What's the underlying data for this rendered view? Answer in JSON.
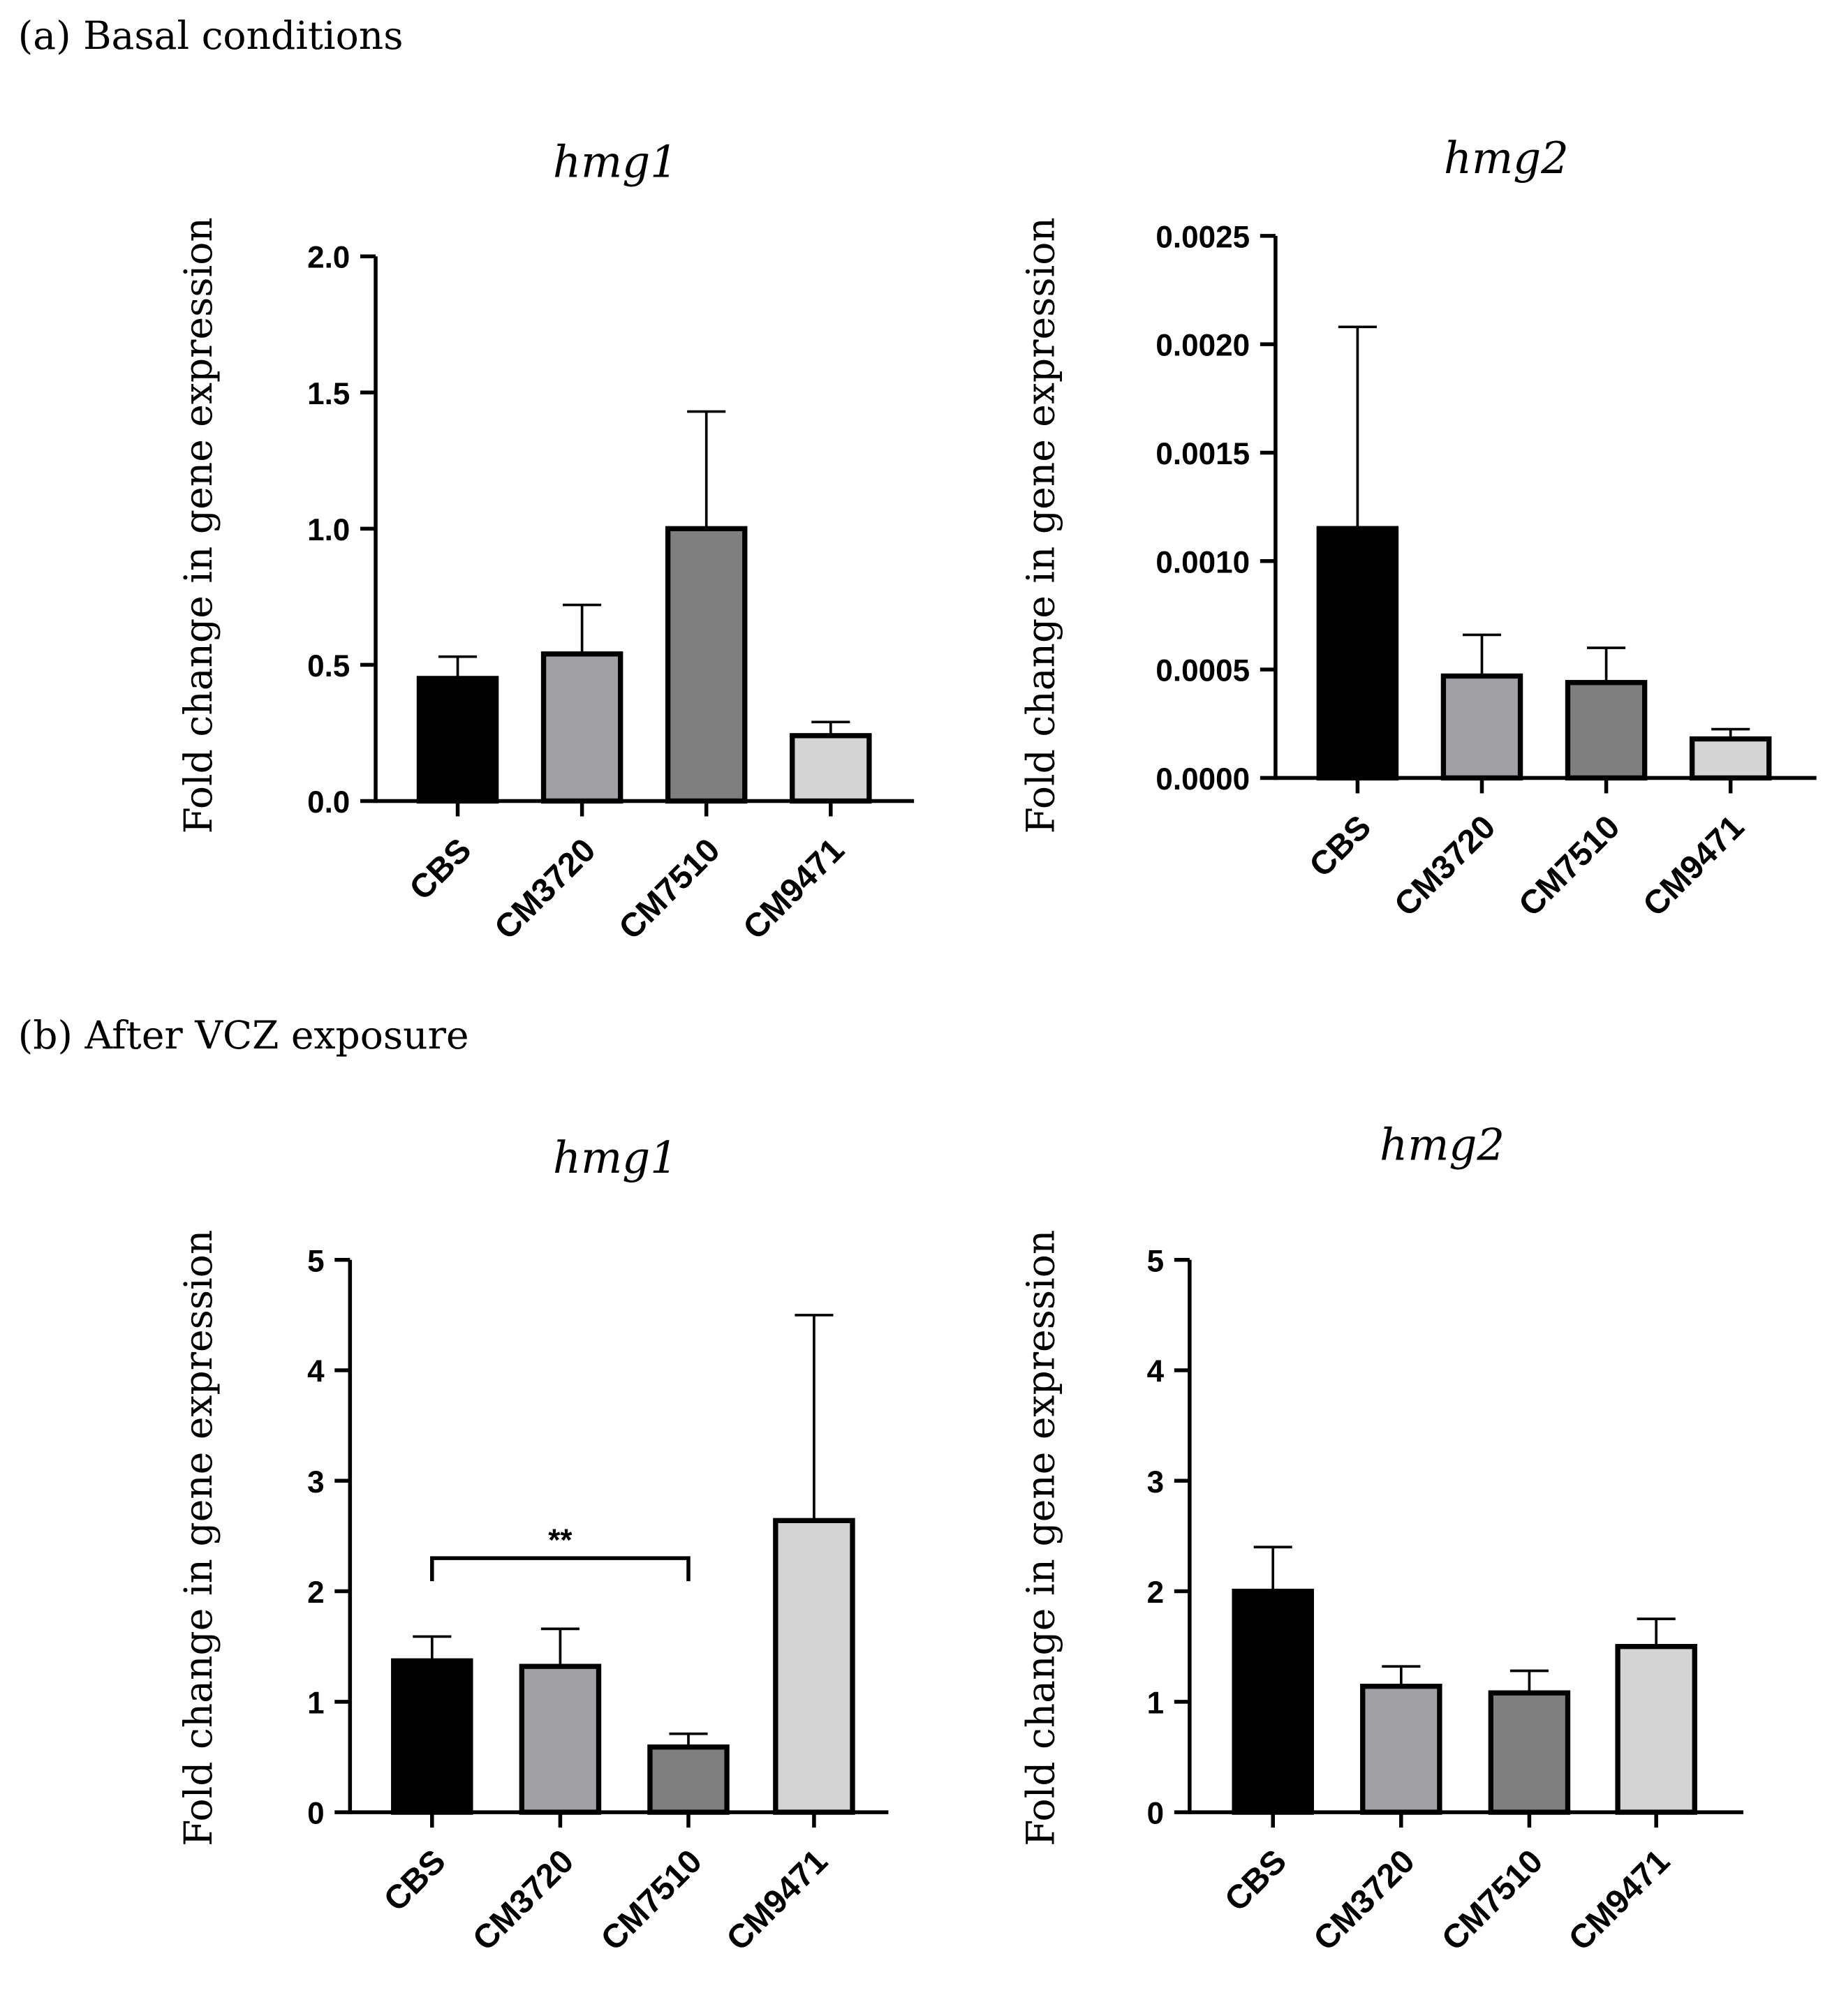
{
  "panels": [
    {
      "label": "(a) Basal conditions"
    },
    {
      "label": "(b) After VCZ exposure"
    }
  ],
  "colors": {
    "CBS": "#000000",
    "CM3720": "#a0a0a5",
    "CM7510": "#7f7f7f",
    "CM9471": "#d4d4d4"
  },
  "chart_data": [
    {
      "type": "bar",
      "panel": "a",
      "title": "hmg1",
      "ylabel": "Fold change in gene expression",
      "xlabel": "",
      "categories": [
        "CBS",
        "CM3720",
        "CM7510",
        "CM9471"
      ],
      "values": [
        0.45,
        0.54,
        1.0,
        0.24
      ],
      "error_upper": [
        0.53,
        0.72,
        1.43,
        0.29
      ],
      "ylim": [
        0,
        2.0
      ],
      "yticks": [
        "0.0",
        "0.5",
        "1.0",
        "1.5",
        "2.0"
      ],
      "ytick_values": [
        0,
        0.5,
        1.0,
        1.5,
        2.0
      ],
      "grid": false
    },
    {
      "type": "bar",
      "panel": "a",
      "title": "hmg2",
      "ylabel": "Fold change in gene expression",
      "xlabel": "",
      "categories": [
        "CBS",
        "CM3720",
        "CM7510",
        "CM9471"
      ],
      "values": [
        0.00115,
        0.00047,
        0.00044,
        0.00018
      ],
      "error_upper": [
        0.00208,
        0.00066,
        0.0006,
        0.000225
      ],
      "ylim": [
        0,
        0.0025
      ],
      "yticks": [
        "0.0000",
        "0.0005",
        "0.0010",
        "0.0015",
        "0.0020",
        "0.0025"
      ],
      "ytick_values": [
        0,
        0.0005,
        0.001,
        0.0015,
        0.002,
        0.0025
      ],
      "grid": false
    },
    {
      "type": "bar",
      "panel": "b",
      "title": "hmg1",
      "ylabel": "Fold change in gene expression",
      "xlabel": "",
      "categories": [
        "CBS",
        "CM3720",
        "CM7510",
        "CM9471"
      ],
      "values": [
        1.37,
        1.32,
        0.59,
        2.64
      ],
      "error_upper": [
        1.59,
        1.66,
        0.71,
        4.5
      ],
      "ylim": [
        0,
        5
      ],
      "yticks": [
        "0",
        "1",
        "2",
        "3",
        "4",
        "5"
      ],
      "ytick_values": [
        0,
        1,
        2,
        3,
        4,
        5
      ],
      "grid": false,
      "annotations": [
        {
          "type": "significance",
          "from": "CBS",
          "to": "CM7510",
          "text": "**",
          "y": 2.3
        }
      ]
    },
    {
      "type": "bar",
      "panel": "b",
      "title": "hmg2",
      "ylabel": "Fold change in gene expression",
      "xlabel": "",
      "categories": [
        "CBS",
        "CM3720",
        "CM7510",
        "CM9471"
      ],
      "values": [
        2.0,
        1.14,
        1.08,
        1.5
      ],
      "error_upper": [
        2.4,
        1.32,
        1.28,
        1.75
      ],
      "ylim": [
        0,
        5
      ],
      "yticks": [
        "0",
        "1",
        "2",
        "3",
        "4",
        "5"
      ],
      "ytick_values": [
        0,
        1,
        2,
        3,
        4,
        5
      ],
      "grid": false
    }
  ]
}
